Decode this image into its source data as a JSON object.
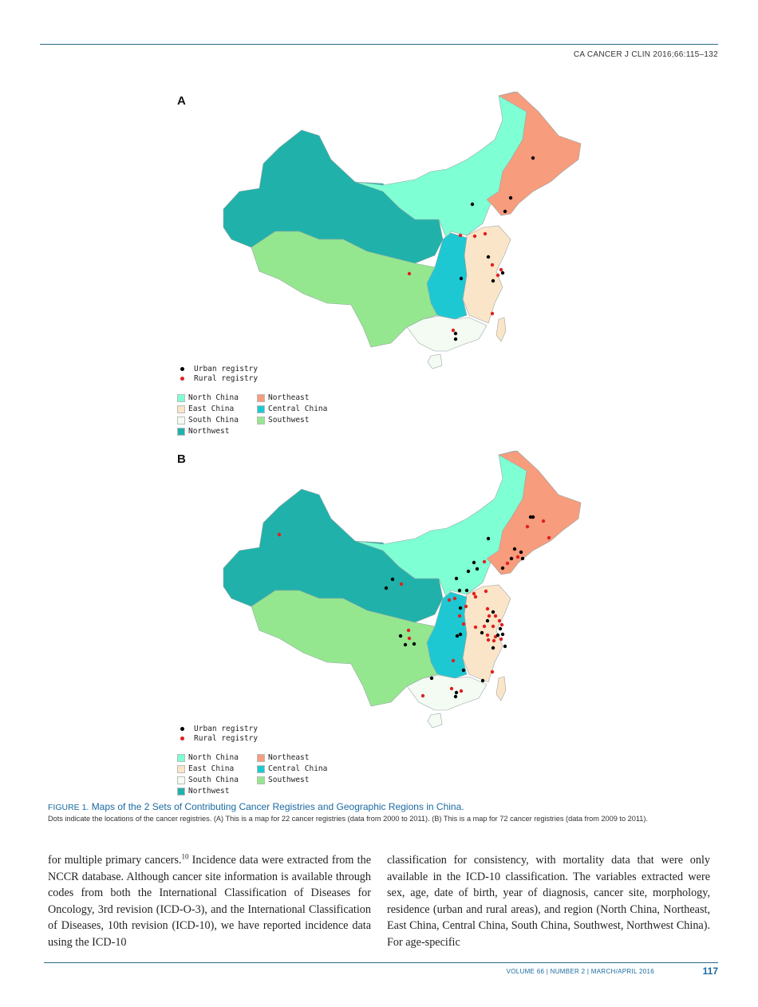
{
  "header": {
    "journal_ref": "CA CANCER J CLIN 2016;66:115–132"
  },
  "figure": {
    "panel_a": "A",
    "panel_b": "B",
    "colors": {
      "north_china": "#7fffd4",
      "northeast": "#f79c7c",
      "east_china": "#fbe5c8",
      "central_china": "#1ec8d3",
      "south_china": "#f3fbf3",
      "southwest": "#94e78e",
      "northwest": "#20b2aa",
      "urban_dot": "#000000",
      "rural_dot": "#e02020"
    },
    "legend": {
      "urban": "Urban registry",
      "rural": "Rural registry",
      "north_china": "North China",
      "northeast": "Northeast",
      "east_china": "East China",
      "central_china": "Central China",
      "south_china": "South China",
      "southwest": "Southwest",
      "northwest": "Northwest"
    }
  },
  "caption": {
    "label": "FIGURE 1.",
    "title": "Maps of the 2 Sets of Contributing Cancer Registries and Geographic Regions in China.",
    "description": "Dots indicate the locations of the cancer registries. (A) This is a map for 22 cancer registries (data from 2000 to 2011). (B) This is a map for 72 cancer registries (data from 2009 to 2011)."
  },
  "body": {
    "left_pre": "for multiple primary cancers.",
    "left_ref": "10",
    "left_post": " Incidence data were extracted from the NCCR database. Although cancer site information is available through codes from both the International Classification of Diseases for Oncology, 3rd revision (ICD-O-3), and the International Classification of Diseases, 10th revision (ICD-10), we have reported incidence data using the ICD-10",
    "right": "classification for consistency, with mortality data that were only available in the ICD-10 classification. The variables extracted were sex, age, date of birth, year of diagnosis, cancer site, morphology, residence (urban and rural areas), and region (North China, Northeast, East China, Central China, South China, Southwest, Northwest China). For age-specific"
  },
  "footer": {
    "text": "VOLUME 66 | NUMBER 2 | MARCH/APRIL 2016",
    "page": "117"
  }
}
